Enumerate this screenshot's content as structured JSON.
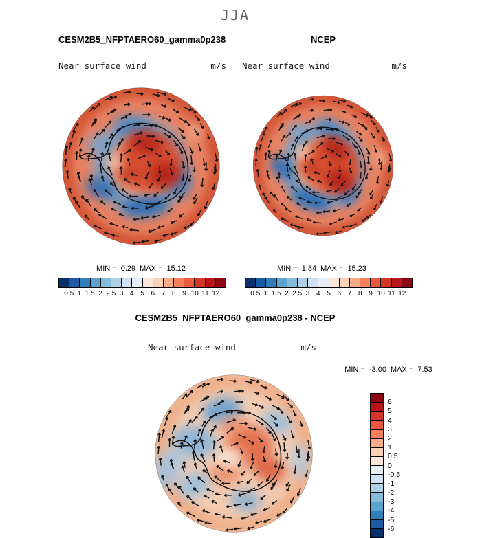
{
  "figure": {
    "season_title": "JJA"
  },
  "panels": {
    "model": {
      "title": "CESM2B5_NFPTAERO60_gamma0p238",
      "field_label": "Near surface wind",
      "units": "m/s",
      "min_label": "MIN =",
      "min_value": "0.29",
      "max_label": "MAX =",
      "max_value": "15.12"
    },
    "ncep": {
      "title": "NCEP",
      "field_label": "Near surface wind",
      "units": "m/s",
      "min_label": "MIN =",
      "min_value": "1.84",
      "max_label": "MAX =",
      "max_value": "15.23"
    },
    "diff": {
      "title": "CESM2B5_NFPTAERO60_gamma0p238 - NCEP",
      "field_label": "Near surface wind",
      "units": "m/s",
      "min_label": "MIN =",
      "min_value": "-3.00",
      "max_label": "MAX =",
      "max_value": "7.53"
    }
  },
  "speed_colorbar": {
    "tick_labels": [
      "0.5",
      "1",
      "1.5",
      "2",
      "2.5",
      "3",
      "4",
      "5",
      "6",
      "7",
      "8",
      "9",
      "10",
      "11",
      "12"
    ],
    "colors": [
      "#08306b",
      "#1c5ba5",
      "#2f7ebc",
      "#5ba3d0",
      "#85bcdc",
      "#aed1e7",
      "#cfe1f2",
      "#e8eef8",
      "#fbe7da",
      "#fbd2b9",
      "#faac88",
      "#f58059",
      "#ec5940",
      "#d73327",
      "#b91419",
      "#8d0712"
    ]
  },
  "diff_colorbar": {
    "tick_labels": [
      "6",
      "5",
      "4",
      "3",
      "2",
      "1",
      "0.5",
      "0",
      "-0.5",
      "-1",
      "-2",
      "-3",
      "-4",
      "-5",
      "-6"
    ],
    "colors": [
      "#8d0712",
      "#b91419",
      "#d73327",
      "#ec5940",
      "#f58059",
      "#faac88",
      "#fbd2b9",
      "#fbe7da",
      "#e8eef8",
      "#cfe1f2",
      "#aed1e7",
      "#85bcdc",
      "#5ba3d0",
      "#2f7ebc",
      "#1c5ba5",
      "#08306b"
    ]
  },
  "chart_data": [
    {
      "type": "heatmap",
      "title": "CESM2B5_NFPTAERO60_gamma0p238",
      "subtitle": "Near surface wind",
      "season": "JJA",
      "units": "m/s",
      "projection": "south polar stereographic (Antarctica)",
      "min": 0.29,
      "max": 15.12,
      "contour_levels": [
        0.5,
        1,
        1.5,
        2,
        2.5,
        3,
        4,
        5,
        6,
        7,
        8,
        9,
        10,
        11,
        12
      ],
      "palette": "blue-white-red",
      "overlay": "near-surface wind vector arrows",
      "legend_position": "horizontal colorbar below panel"
    },
    {
      "type": "heatmap",
      "title": "NCEP",
      "subtitle": "Near surface wind",
      "season": "JJA",
      "units": "m/s",
      "projection": "south polar stereographic (Antarctica)",
      "min": 1.84,
      "max": 15.23,
      "contour_levels": [
        0.5,
        1,
        1.5,
        2,
        2.5,
        3,
        4,
        5,
        6,
        7,
        8,
        9,
        10,
        11,
        12
      ],
      "palette": "blue-white-red",
      "overlay": "near-surface wind vector arrows",
      "legend_position": "horizontal colorbar below panel"
    },
    {
      "type": "heatmap",
      "title": "CESM2B5_NFPTAERO60_gamma0p238 - NCEP",
      "subtitle": "Near surface wind",
      "season": "JJA",
      "units": "m/s",
      "projection": "south polar stereographic (Antarctica)",
      "min": -3.0,
      "max": 7.53,
      "contour_levels": [
        -6,
        -5,
        -4,
        -3,
        -2,
        -1,
        -0.5,
        0,
        0.5,
        1,
        2,
        3,
        4,
        5,
        6
      ],
      "palette": "blue-white-red diverging",
      "overlay": "wind vector difference arrows",
      "legend_position": "vertical colorbar right of panel"
    }
  ]
}
